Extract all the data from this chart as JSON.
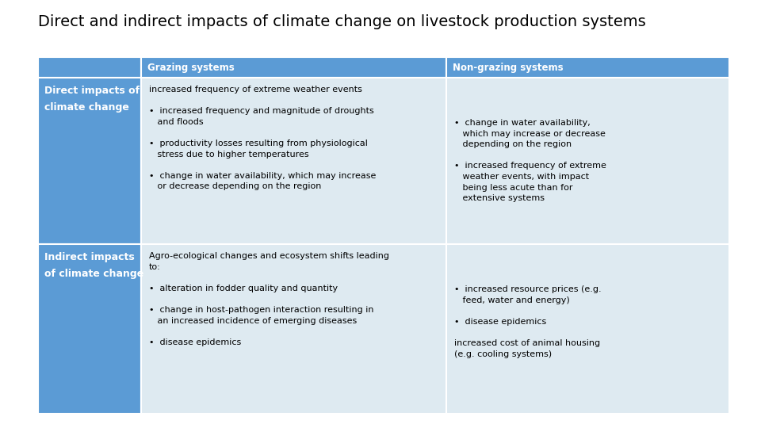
{
  "title": "Direct and indirect impacts of climate change on livestock production systems",
  "title_fontsize": 14,
  "header_color": "#5B9BD5",
  "header_text_color": "#FFFFFF",
  "row_label_color": "#5B9BD5",
  "row_label_text_color": "#FFFFFF",
  "cell_color_light": "#DEEAF1",
  "background_color": "#FFFFFF",
  "col_headers": [
    "Grazing systems",
    "Non-grazing systems"
  ],
  "row_labels": [
    "Direct impacts of\nclimate change",
    "Indirect impacts\nof climate change"
  ],
  "grazing_direct": "increased frequency of extreme weather events\n\n•  increased frequency and magnitude of droughts\n   and floods\n\n•  productivity losses resulting from physiological\n   stress due to higher temperatures\n\n•  change in water availability, which may increase\n   or decrease depending on the region",
  "nongrazing_direct": "•  change in water availability,\n   which may increase or decrease\n   depending on the region\n\n•  increased frequency of extreme\n   weather events, with impact\n   being less acute than for\n   extensive systems",
  "grazing_indirect": "Agro-ecological changes and ecosystem shifts leading\nto:\n\n•  alteration in fodder quality and quantity\n\n•  change in host-pathogen interaction resulting in\n   an increased incidence of emerging diseases\n\n•  disease epidemics",
  "nongrazing_indirect": "•  increased resource prices (e.g.\n   feed, water and energy)\n\n•  disease epidemics\n\nincreased cost of animal housing\n(e.g. cooling systems)",
  "text_fontsize": 8.0,
  "label_fontsize": 9.0,
  "header_fontsize": 8.5
}
